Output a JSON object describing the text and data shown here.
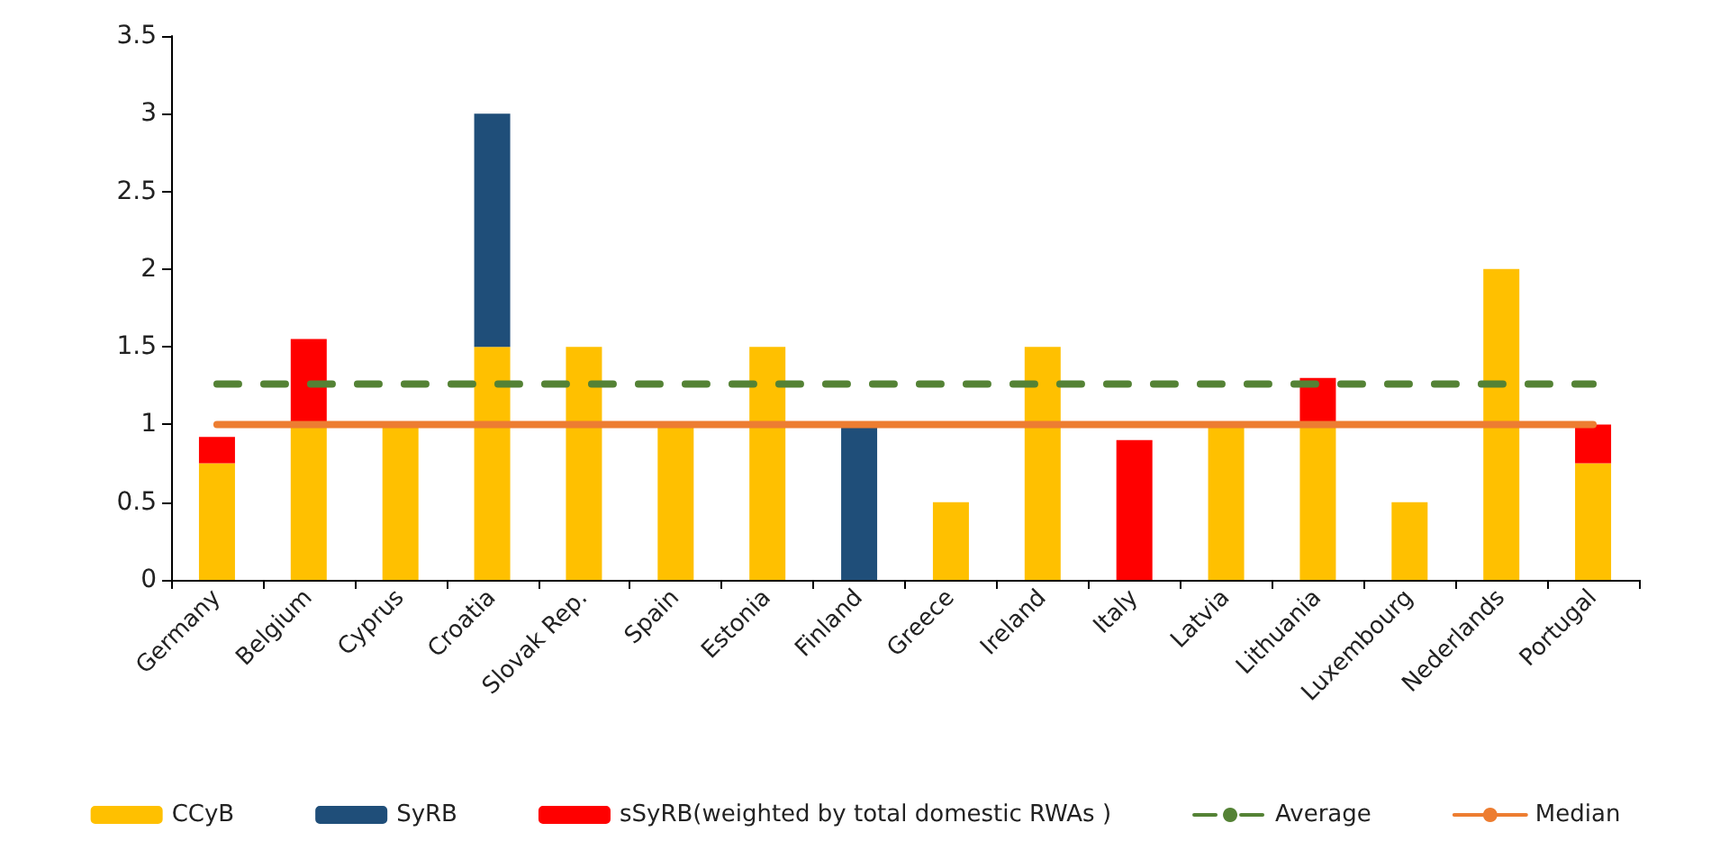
{
  "chart_data": {
    "type": "bar",
    "stacked": true,
    "categories": [
      "Germany",
      "Belgium",
      "Cyprus",
      "Croatia",
      "Slovak Rep.",
      "Spain",
      "Estonia",
      "Finland",
      "Greece",
      "Ireland",
      "Italy",
      "Latvia",
      "Lithuania",
      "Luxembourg",
      "Nederlands",
      "Portugal"
    ],
    "series": [
      {
        "name": "CCyB",
        "color": "#ffc000",
        "values": [
          0.75,
          1,
          1,
          1.5,
          1.5,
          1,
          1.5,
          null,
          0.5,
          1.5,
          null,
          1,
          1,
          0.5,
          2,
          0.75
        ]
      },
      {
        "name": "SyRB",
        "color": "#1f4e79",
        "values": [
          null,
          null,
          null,
          1.5,
          null,
          null,
          null,
          1,
          null,
          null,
          null,
          null,
          null,
          null,
          null,
          null
        ]
      },
      {
        "name": "sSyRB(weighted by total domestic RWAs )",
        "color": "#ff0000",
        "values": [
          0.17,
          0.55,
          null,
          null,
          null,
          null,
          null,
          null,
          null,
          null,
          0.9,
          null,
          0.3,
          null,
          null,
          0.25
        ]
      },
      {
        "name": "Average",
        "type": "line",
        "color": "#548235",
        "line_style": "dashed",
        "values": [
          1.26,
          1.26,
          1.26,
          1.26,
          1.26,
          1.26,
          1.26,
          1.26,
          1.26,
          1.26,
          1.26,
          1.26,
          1.26,
          1.26,
          1.26,
          1.26
        ]
      },
      {
        "name": "Median",
        "type": "line",
        "color": "#ed7d31",
        "line_style": "solid",
        "values": [
          1,
          1,
          1,
          1,
          1,
          1,
          1,
          1,
          1,
          1,
          1,
          1,
          1,
          1,
          1,
          1
        ]
      }
    ],
    "ylim": [
      0,
      3.5
    ],
    "yticks": [
      0,
      0.5,
      1,
      1.5,
      2,
      2.5,
      3,
      3.5
    ],
    "grid": false,
    "legend": "bottom",
    "marker": "none"
  }
}
